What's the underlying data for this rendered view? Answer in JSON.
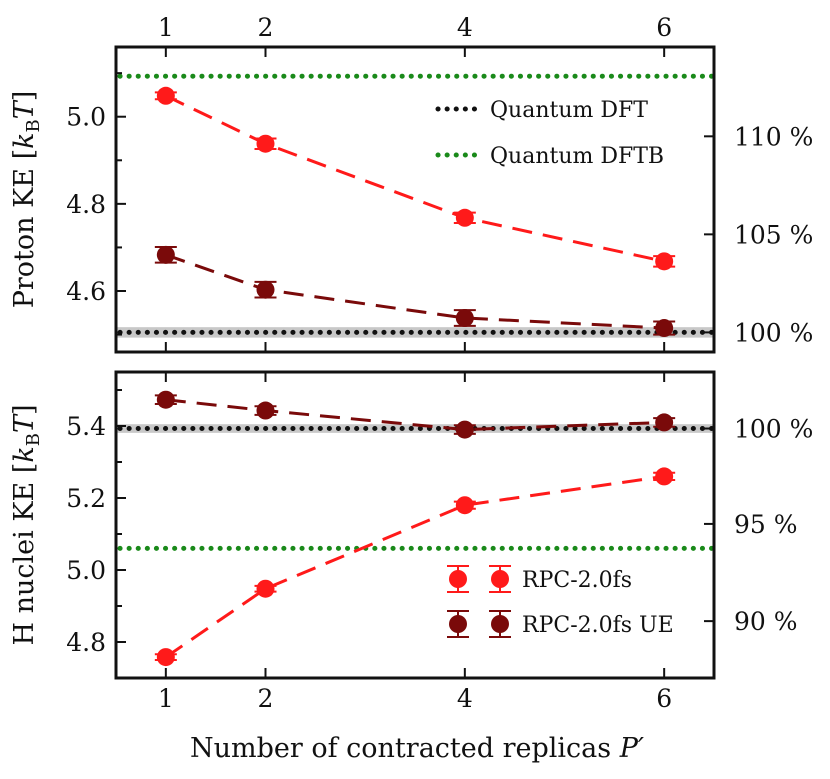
{
  "chart_data": [
    {
      "type": "line",
      "panel": "top",
      "xlabel": "Number of contracted replicas P′",
      "ylabel": "Proton KE [kBT]",
      "xlim": [
        0.5,
        6.5
      ],
      "ylim": [
        4.46,
        5.16
      ],
      "x_ticks": [
        "1",
        "2",
        "4",
        "6"
      ],
      "x_tick_values": [
        1,
        2,
        4,
        6
      ],
      "y_ticks": [
        "4.6",
        "4.8",
        "5.0"
      ],
      "y_tick_values": [
        4.6,
        4.8,
        5.0
      ],
      "right_ticks": [
        "100 %",
        "105 %",
        "110 %"
      ],
      "right_tick_values": [
        4.505,
        4.73,
        4.955
      ],
      "reference_lines": [
        {
          "name": "Quantum DFT",
          "value": 4.505,
          "color": "#111111",
          "band": 0.012
        },
        {
          "name": "Quantum DFTB",
          "value": 5.093,
          "color": "#1a8a1a"
        }
      ],
      "legend": [
        "Quantum DFT",
        "Quantum DFTB"
      ],
      "series": [
        {
          "name": "RPC-2.0fs",
          "color": "#ff1a1a",
          "x": [
            1,
            2,
            4,
            6
          ],
          "y": [
            5.048,
            4.938,
            4.768,
            4.668
          ],
          "err": [
            0.008,
            0.012,
            0.012,
            0.012
          ]
        },
        {
          "name": "RPC-2.0fs UE",
          "color": "#7a0a0a",
          "x": [
            1,
            2,
            4,
            6
          ],
          "y": [
            4.683,
            4.603,
            4.538,
            4.515
          ],
          "err": [
            0.018,
            0.018,
            0.018,
            0.015
          ]
        }
      ]
    },
    {
      "type": "line",
      "panel": "bottom",
      "xlabel": "Number of contracted replicas P′",
      "ylabel": "H nuclei KE [kBT]",
      "xlim": [
        0.5,
        6.5
      ],
      "ylim": [
        4.7,
        5.55
      ],
      "x_ticks": [
        "1",
        "2",
        "4",
        "6"
      ],
      "x_tick_values": [
        1,
        2,
        4,
        6
      ],
      "y_ticks": [
        "4.8",
        "5.0",
        "5.2",
        "5.4"
      ],
      "y_tick_values": [
        4.8,
        5.0,
        5.2,
        5.4
      ],
      "right_ticks": [
        "90 %",
        "95 %",
        "100 %"
      ],
      "right_tick_values": [
        4.858,
        5.128,
        5.393
      ],
      "reference_lines": [
        {
          "name": "Quantum DFT",
          "value": 5.393,
          "color": "#111111",
          "band": 0.012
        },
        {
          "name": "Quantum DFTB",
          "value": 5.06,
          "color": "#1a8a1a"
        }
      ],
      "legend": [
        "RPC-2.0fs",
        "RPC-2.0fs UE"
      ],
      "series": [
        {
          "name": "RPC-2.0fs",
          "color": "#ff1a1a",
          "x": [
            1,
            2,
            4,
            6
          ],
          "y": [
            4.758,
            4.948,
            5.18,
            5.26
          ],
          "err": [
            0.008,
            0.008,
            0.01,
            0.01
          ]
        },
        {
          "name": "RPC-2.0fs UE",
          "color": "#7a0a0a",
          "x": [
            1,
            2,
            4,
            6
          ],
          "y": [
            5.473,
            5.443,
            5.39,
            5.41
          ],
          "err": [
            0.012,
            0.012,
            0.012,
            0.012
          ]
        }
      ]
    }
  ]
}
